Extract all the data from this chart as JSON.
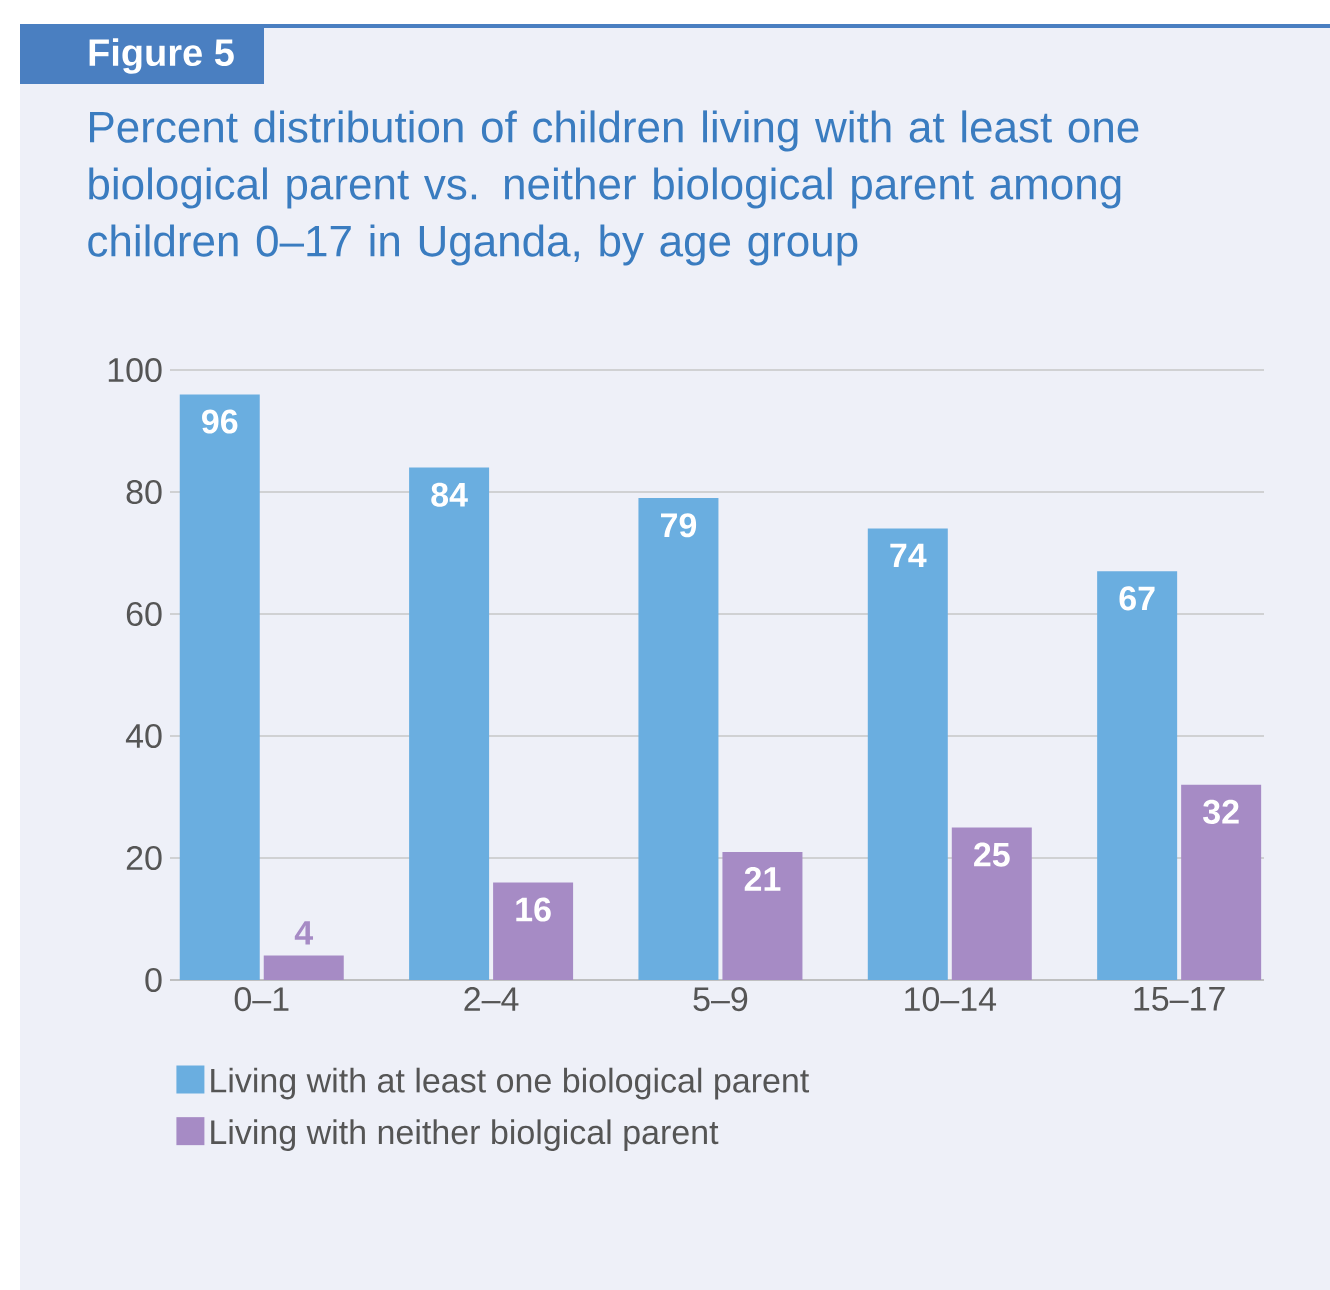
{
  "chart_data": {
    "type": "bar",
    "title": "Percent distribution of children living with at least one biological parent vs. neither biological parent among children 0–17 in Uganda, by age group",
    "annotations": [
      "Figure 5"
    ],
    "categories": [
      "0–1",
      "2–4",
      "5–9",
      "10–14",
      "15–17"
    ],
    "series": [
      {
        "name": "Living with at least one biological parent",
        "color": "#6aaee0",
        "values": [
          96,
          84,
          79,
          74,
          67
        ]
      },
      {
        "name": "Living with neither biolgical parent",
        "color": "#a68bc5",
        "values": [
          4,
          16,
          21,
          25,
          32
        ]
      }
    ],
    "ylim": [
      0,
      100
    ],
    "yticks": [
      0,
      20,
      40,
      60,
      80,
      100
    ],
    "grid": "y",
    "legend": "bottom",
    "data_labels": true
  }
}
